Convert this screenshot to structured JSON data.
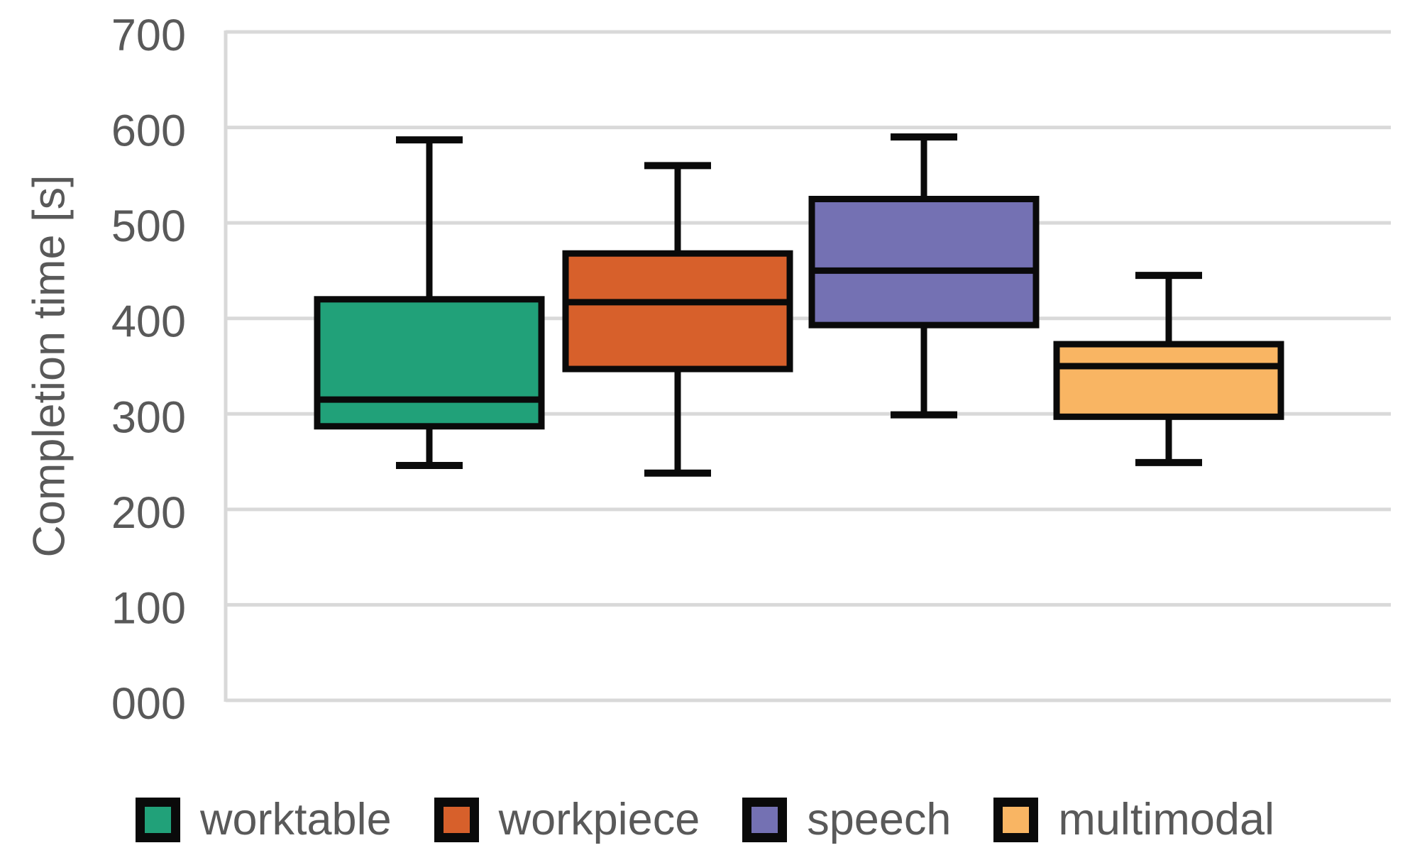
{
  "chart_data": {
    "type": "boxplot",
    "title": "",
    "xlabel": "",
    "ylabel": "Completion time [s]",
    "y_axis": {
      "min": 0,
      "max": 700,
      "step": 100,
      "tick_labels": [
        "000",
        "100",
        "200",
        "300",
        "400",
        "500",
        "600",
        "700"
      ]
    },
    "grid": true,
    "legend_position": "bottom",
    "series": [
      {
        "name": "worktable",
        "color": "#21A179",
        "min": 246,
        "q1": 287,
        "median": 315,
        "q3": 420,
        "max": 587
      },
      {
        "name": "workpiece",
        "color": "#D7602B",
        "min": 238,
        "q1": 347,
        "median": 417,
        "q3": 468,
        "max": 560
      },
      {
        "name": "speech",
        "color": "#7471B3",
        "min": 299,
        "q1": 393,
        "median": 450,
        "q3": 525,
        "max": 590
      },
      {
        "name": "multimodal",
        "color": "#F9B563",
        "min": 249,
        "q1": 297,
        "median": 350,
        "q3": 373,
        "max": 445
      }
    ]
  },
  "colors": {
    "text": "#595959",
    "gridline": "#D9D9D9",
    "box_stroke": "#0A0A0A",
    "background": "#FFFFFF"
  }
}
